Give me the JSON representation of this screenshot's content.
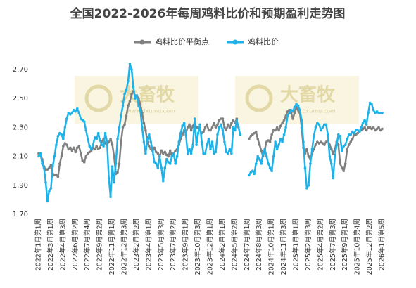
{
  "chart_data": {
    "type": "line",
    "title": "全国2022-2026年每周鸡料比价和预期盈利走势图",
    "watermark": {
      "name": "大畜牧",
      "url": "www.dxumu.com"
    },
    "categories": [
      "2022年1月第1周",
      null,
      null,
      null,
      null,
      null,
      null,
      "2022年3月第1周",
      null,
      null,
      null,
      null,
      null,
      null,
      "2022年4月第3周",
      null,
      null,
      null,
      null,
      null,
      null,
      "2022年6月第2周",
      null,
      null,
      null,
      null,
      null,
      null,
      "2022年7月第4周",
      null,
      null,
      null,
      null,
      null,
      null,
      "2022年9月第2周",
      null,
      null,
      null,
      null,
      null,
      null,
      "2022年11月第1周",
      null,
      null,
      null,
      null,
      null,
      null,
      "2022年12月第3周",
      null,
      null,
      null,
      null,
      null,
      null,
      "2023年2月第2周",
      null,
      null,
      null,
      null,
      null,
      null,
      "2023年4月第1周",
      null,
      null,
      null,
      null,
      null,
      null,
      "2023年5月第3周",
      null,
      null,
      null,
      null,
      null,
      null,
      "2023年7月第2周",
      null,
      null,
      null,
      null,
      null,
      null,
      "2023年9月第1周",
      null,
      null,
      null,
      null,
      null,
      null,
      "2023年10月第3周",
      null,
      null,
      null,
      null,
      null,
      null,
      "2023年12月第1周",
      null,
      null,
      null,
      null,
      null,
      null,
      "2024年2月第1周",
      null,
      null,
      null,
      null,
      null,
      null,
      "2024年5月第2周",
      null,
      null,
      null,
      null,
      null,
      null,
      "2024年7月第1周",
      null,
      null,
      null,
      null,
      null,
      null,
      "2024年8月第3周",
      null,
      null,
      null,
      null,
      null,
      null,
      "2024年10月第1周",
      null,
      null,
      null,
      null,
      null,
      null,
      "2024年11月第3周",
      null,
      null,
      null,
      null,
      null,
      null,
      "2025年1月第1周",
      null,
      null,
      null,
      null,
      null,
      null,
      "2025年2月第3周",
      null,
      null,
      null,
      null,
      null,
      null,
      "2025年4月第2周",
      null,
      null,
      null,
      null,
      null,
      null,
      "2025年7月第3周",
      null,
      null,
      null,
      null,
      null,
      null,
      "2025年9月第1周",
      null,
      null,
      null,
      null,
      null,
      null,
      "2025年10月第4周",
      null,
      null,
      null,
      null,
      null,
      null,
      "2025年12月第2周",
      null,
      null,
      null,
      null,
      null,
      null,
      "2026年1月第5周"
    ],
    "series": [
      {
        "name": "鸡料比价平衡点",
        "color": "#808080",
        "values": [
          2.12,
          2.11,
          2.08,
          2.03,
          2.01,
          2.01,
          2.02,
          2.04,
          1.98,
          1.97,
          1.97,
          1.96,
          2.05,
          2.1,
          2.17,
          2.19,
          2.18,
          2.15,
          2.16,
          2.14,
          2.16,
          2.13,
          2.16,
          2.17,
          2.12,
          2.07,
          2.06,
          2.1,
          2.12,
          2.13,
          2.14,
          2.16,
          2.15,
          2.17,
          2.15,
          2.16,
          2.2,
          2.22,
          2.19,
          2.18,
          2.2,
          2.22,
          2.18,
          2.1,
          1.98,
          1.99,
          2.05,
          2.2,
          2.3,
          2.32,
          2.38,
          2.45,
          2.48,
          2.53,
          2.55,
          2.52,
          2.52,
          2.5,
          2.46,
          2.4,
          2.33,
          2.28,
          2.2,
          2.17,
          2.15,
          2.14,
          2.16,
          2.13,
          2.12,
          2.1,
          2.14,
          2.12,
          2.13,
          2.11,
          2.1,
          2.14,
          2.1,
          2.12,
          2.14,
          2.15,
          2.18,
          2.22,
          2.25,
          2.28,
          2.26,
          2.3,
          2.32,
          2.28,
          2.31,
          2.33,
          2.3,
          2.3,
          2.28,
          2.26,
          2.27,
          2.3,
          2.32,
          2.28,
          2.28,
          2.3,
          2.33,
          2.3,
          2.32,
          2.35,
          2.36,
          2.36,
          2.3,
          2.28,
          2.32,
          2.3,
          2.33,
          2.35,
          2.33,
          2.36,
          null,
          null,
          null,
          null,
          null,
          null,
          2.22,
          2.24,
          2.25,
          2.26,
          2.27,
          2.22,
          2.18,
          2.14,
          2.1,
          2.15,
          2.2,
          2.21,
          2.2,
          2.25,
          2.28,
          2.28,
          2.3,
          2.28,
          2.31,
          2.33,
          2.35,
          2.38,
          2.41,
          2.42,
          2.4,
          2.36,
          2.4,
          2.44,
          2.42,
          2.4,
          2.3,
          2.16,
          2.12,
          2.15,
          2.1,
          2.08,
          2.12,
          2.15,
          2.18,
          2.2,
          2.19,
          2.2,
          2.19,
          2.18,
          2.2,
          2.21,
          2.18,
          2.15,
          2.12,
          2.15,
          2.2,
          2.18,
          2.05,
          2.02,
          2.0,
          2.05,
          2.15,
          2.18,
          2.2,
          2.22,
          2.25,
          2.25,
          2.26,
          2.27,
          2.28,
          2.29,
          2.3,
          2.28,
          2.3,
          2.3,
          2.29,
          2.3,
          2.28,
          2.29,
          2.3,
          2.28,
          2.29
        ]
      },
      {
        "name": "鸡料比价",
        "color": "#1fb2e8",
        "values": [
          2.1,
          2.12,
          2.05,
          2.02,
          1.92,
          1.79,
          1.86,
          1.88,
          2.03,
          2.1,
          2.18,
          2.24,
          2.26,
          2.25,
          2.22,
          2.3,
          2.36,
          2.4,
          2.39,
          2.4,
          2.42,
          2.41,
          2.43,
          2.4,
          2.36,
          2.35,
          2.34,
          2.28,
          2.22,
          2.17,
          2.15,
          2.18,
          2.23,
          2.22,
          2.26,
          2.21,
          2.18,
          2.17,
          2.26,
          2.2,
          1.95,
          1.82,
          2.03,
          1.92,
          2.05,
          2.22,
          2.3,
          2.38,
          2.45,
          2.53,
          2.56,
          2.62,
          2.74,
          2.7,
          2.58,
          2.5,
          2.52,
          2.45,
          2.42,
          2.3,
          2.2,
          2.12,
          2.22,
          2.25,
          2.2,
          2.14,
          2.06,
          2.05,
          2.02,
          2.1,
          2.02,
          1.93,
          2.02,
          2.08,
          2.06,
          2.05,
          2.1,
          2.12,
          2.05,
          2.1,
          2.2,
          2.26,
          2.31,
          2.33,
          2.25,
          2.12,
          2.15,
          2.12,
          2.18,
          2.36,
          2.18,
          2.26,
          2.32,
          2.2,
          2.12,
          2.12,
          2.18,
          2.22,
          2.15,
          2.2,
          2.12,
          2.13,
          2.25,
          2.3,
          2.32,
          2.28,
          2.2,
          2.13,
          2.12,
          2.15,
          2.12,
          2.3,
          2.28,
          2.35,
          2.3,
          2.25,
          null,
          null,
          null,
          null,
          1.97,
          1.99,
          2.0,
          1.98,
          2.05,
          2.1,
          2.08,
          2.05,
          2.12,
          2.15,
          2.1,
          2.05,
          2.02,
          2.0,
          2.1,
          2.2,
          2.15,
          2.18,
          2.22,
          2.2,
          2.25,
          2.3,
          2.38,
          2.4,
          2.42,
          2.41,
          2.44,
          2.46,
          2.45,
          2.42,
          2.35,
          2.2,
          2.02,
          1.88,
          1.9,
          2.05,
          2.15,
          2.24,
          2.3,
          2.33,
          2.32,
          2.28,
          2.3,
          2.32,
          2.32,
          2.25,
          2.1,
          2.05,
          1.95,
          2.1,
          2.18,
          2.25,
          2.24,
          2.14,
          2.17,
          2.18,
          2.22,
          2.25,
          2.25,
          2.27,
          2.26,
          2.28,
          2.28,
          2.27,
          2.3,
          2.33,
          2.35,
          2.32,
          2.4,
          2.47,
          2.46,
          2.42,
          2.4,
          2.41,
          2.4,
          2.4,
          2.4
        ]
      }
    ],
    "ylim": [
      1.7,
      2.8
    ],
    "yticks": [
      {
        "value": 1.7,
        "label": "1.70"
      },
      {
        "value": 1.9,
        "label": "1.90"
      },
      {
        "value": 2.1,
        "label": "2.10"
      },
      {
        "value": 2.3,
        "label": "2.30"
      },
      {
        "value": 2.5,
        "label": "2.50"
      },
      {
        "value": 2.7,
        "label": "2.70"
      }
    ],
    "grid": false,
    "legend": "top"
  }
}
